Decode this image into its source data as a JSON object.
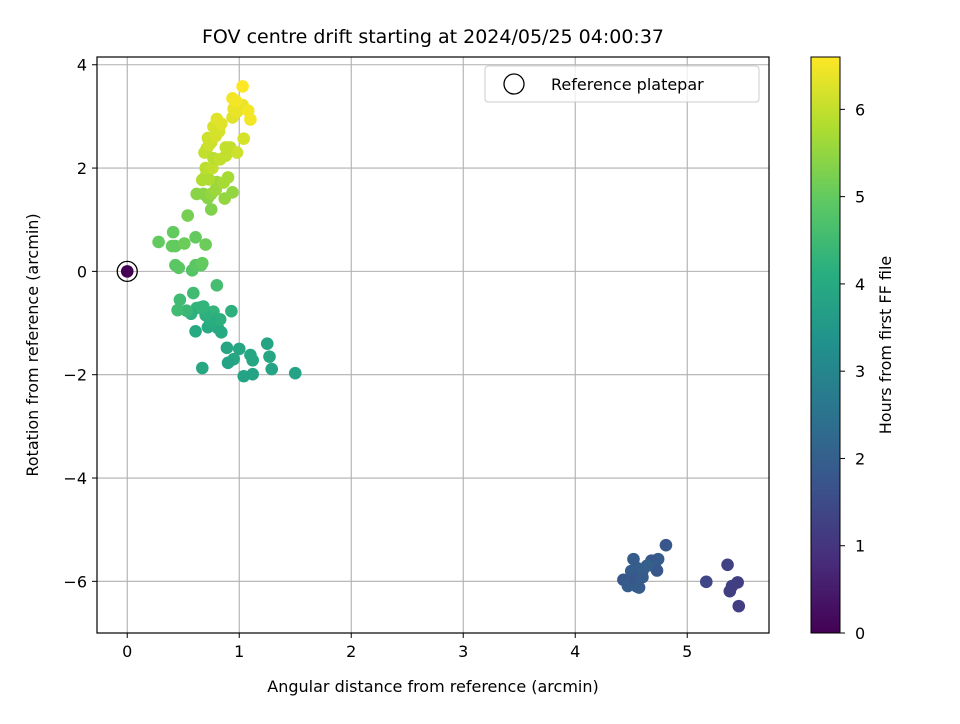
{
  "chart_data": {
    "type": "scatter",
    "title": "FOV centre drift starting at 2024/05/25 04:00:37",
    "xlabel": "Angular distance from reference (arcmin)",
    "ylabel": "Rotation from reference (arcmin)",
    "xlim": [
      -0.27,
      5.73
    ],
    "ylim": [
      -7.0,
      4.15
    ],
    "xticks": [
      0,
      1,
      2,
      3,
      4,
      5
    ],
    "yticks": [
      -6,
      -4,
      -2,
      0,
      2,
      4
    ],
    "xtick_labels": [
      "0",
      "1",
      "2",
      "3",
      "4",
      "5"
    ],
    "ytick_labels": [
      "−6",
      "−4",
      "−2",
      "0",
      "2",
      "4"
    ],
    "grid": true,
    "legend": {
      "position": "top-right",
      "entries": [
        "Reference platepar"
      ]
    },
    "colorbar": {
      "label": "Hours from first FF file",
      "colormap": "viridis",
      "range": [
        0,
        6.6
      ],
      "ticks": [
        0,
        1,
        2,
        3,
        4,
        5,
        6
      ],
      "tick_labels": [
        "0",
        "1",
        "2",
        "3",
        "4",
        "5",
        "6"
      ]
    },
    "reference_point": {
      "x": 0,
      "y": 0,
      "c": 0
    },
    "points": [
      {
        "x": 4.81,
        "y": -5.3,
        "c": 1.8
      },
      {
        "x": 4.74,
        "y": -5.57,
        "c": 1.9
      },
      {
        "x": 4.68,
        "y": -5.6,
        "c": 1.8
      },
      {
        "x": 4.71,
        "y": -5.72,
        "c": 1.9
      },
      {
        "x": 4.73,
        "y": -5.79,
        "c": 1.8
      },
      {
        "x": 4.52,
        "y": -5.57,
        "c": 1.9
      },
      {
        "x": 4.55,
        "y": -5.74,
        "c": 1.9
      },
      {
        "x": 4.6,
        "y": -5.8,
        "c": 2.0
      },
      {
        "x": 4.5,
        "y": -5.8,
        "c": 1.9
      },
      {
        "x": 4.43,
        "y": -5.97,
        "c": 1.8
      },
      {
        "x": 4.47,
        "y": -6.09,
        "c": 1.9
      },
      {
        "x": 4.55,
        "y": -6.1,
        "c": 2.0
      },
      {
        "x": 4.53,
        "y": -5.97,
        "c": 1.8
      },
      {
        "x": 4.6,
        "y": -5.92,
        "c": 1.9
      },
      {
        "x": 4.64,
        "y": -5.7,
        "c": 2.0
      },
      {
        "x": 4.57,
        "y": -6.12,
        "c": 1.9
      },
      {
        "x": 5.17,
        "y": -6.01,
        "c": 1.4
      },
      {
        "x": 5.36,
        "y": -5.68,
        "c": 1.3
      },
      {
        "x": 5.4,
        "y": -6.09,
        "c": 1.3
      },
      {
        "x": 5.38,
        "y": -6.19,
        "c": 1.2
      },
      {
        "x": 5.45,
        "y": -6.02,
        "c": 1.2
      },
      {
        "x": 5.46,
        "y": -6.48,
        "c": 1.2
      },
      {
        "x": 1.5,
        "y": -1.97,
        "c": 3.8
      },
      {
        "x": 1.29,
        "y": -1.89,
        "c": 3.8
      },
      {
        "x": 1.27,
        "y": -1.65,
        "c": 3.9
      },
      {
        "x": 1.25,
        "y": -1.4,
        "c": 3.8
      },
      {
        "x": 1.1,
        "y": -1.62,
        "c": 3.9
      },
      {
        "x": 1.12,
        "y": -1.72,
        "c": 3.9
      },
      {
        "x": 1.12,
        "y": -1.99,
        "c": 3.8
      },
      {
        "x": 1.04,
        "y": -2.03,
        "c": 3.8
      },
      {
        "x": 1.0,
        "y": -1.5,
        "c": 3.9
      },
      {
        "x": 0.89,
        "y": -1.48,
        "c": 3.9
      },
      {
        "x": 0.95,
        "y": -1.7,
        "c": 3.9
      },
      {
        "x": 0.9,
        "y": -1.77,
        "c": 3.8
      },
      {
        "x": 0.67,
        "y": -1.87,
        "c": 3.9
      },
      {
        "x": 0.84,
        "y": -1.18,
        "c": 4.0
      },
      {
        "x": 0.81,
        "y": -1.1,
        "c": 4.0
      },
      {
        "x": 0.72,
        "y": -1.08,
        "c": 4.0
      },
      {
        "x": 0.61,
        "y": -1.16,
        "c": 4.0
      },
      {
        "x": 0.93,
        "y": -0.77,
        "c": 4.2
      },
      {
        "x": 0.83,
        "y": -0.93,
        "c": 4.2
      },
      {
        "x": 0.77,
        "y": -0.78,
        "c": 4.3
      },
      {
        "x": 0.79,
        "y": -0.92,
        "c": 4.2
      },
      {
        "x": 0.74,
        "y": -0.96,
        "c": 4.1
      },
      {
        "x": 0.7,
        "y": -0.85,
        "c": 4.2
      },
      {
        "x": 0.65,
        "y": -0.7,
        "c": 4.3
      },
      {
        "x": 0.68,
        "y": -0.68,
        "c": 4.3
      },
      {
        "x": 0.62,
        "y": -0.71,
        "c": 4.3
      },
      {
        "x": 0.57,
        "y": -0.82,
        "c": 4.2
      },
      {
        "x": 0.53,
        "y": -0.76,
        "c": 4.4
      },
      {
        "x": 0.47,
        "y": -0.55,
        "c": 4.5
      },
      {
        "x": 0.45,
        "y": -0.75,
        "c": 4.5
      },
      {
        "x": 0.59,
        "y": -0.42,
        "c": 4.5
      },
      {
        "x": 0.8,
        "y": -0.27,
        "c": 4.6
      },
      {
        "x": 0.28,
        "y": 0.57,
        "c": 5.0
      },
      {
        "x": 0.41,
        "y": 0.76,
        "c": 5.0
      },
      {
        "x": 0.4,
        "y": 0.49,
        "c": 5.0
      },
      {
        "x": 0.43,
        "y": 0.49,
        "c": 5.0
      },
      {
        "x": 0.51,
        "y": 0.54,
        "c": 5.1
      },
      {
        "x": 0.61,
        "y": 0.66,
        "c": 5.0
      },
      {
        "x": 0.7,
        "y": 0.52,
        "c": 5.1
      },
      {
        "x": 0.43,
        "y": 0.12,
        "c": 4.9
      },
      {
        "x": 0.46,
        "y": 0.07,
        "c": 4.9
      },
      {
        "x": 0.58,
        "y": 0.02,
        "c": 4.8
      },
      {
        "x": 0.61,
        "y": 0.12,
        "c": 4.9
      },
      {
        "x": 0.66,
        "y": 0.12,
        "c": 4.9
      },
      {
        "x": 0.67,
        "y": 0.16,
        "c": 5.0
      },
      {
        "x": 0.54,
        "y": 1.08,
        "c": 5.2
      },
      {
        "x": 0.62,
        "y": 1.5,
        "c": 5.4
      },
      {
        "x": 0.68,
        "y": 1.5,
        "c": 5.4
      },
      {
        "x": 0.72,
        "y": 1.42,
        "c": 5.4
      },
      {
        "x": 0.75,
        "y": 1.2,
        "c": 5.3
      },
      {
        "x": 0.75,
        "y": 1.5,
        "c": 5.5
      },
      {
        "x": 0.79,
        "y": 1.58,
        "c": 5.6
      },
      {
        "x": 0.8,
        "y": 1.73,
        "c": 5.6
      },
      {
        "x": 0.87,
        "y": 1.41,
        "c": 5.5
      },
      {
        "x": 0.94,
        "y": 1.53,
        "c": 5.5
      },
      {
        "x": 0.9,
        "y": 1.82,
        "c": 5.7
      },
      {
        "x": 0.86,
        "y": 1.72,
        "c": 5.7
      },
      {
        "x": 0.7,
        "y": 1.84,
        "c": 5.8
      },
      {
        "x": 0.73,
        "y": 1.78,
        "c": 5.8
      },
      {
        "x": 0.67,
        "y": 1.77,
        "c": 5.8
      },
      {
        "x": 0.7,
        "y": 2.0,
        "c": 5.9
      },
      {
        "x": 0.76,
        "y": 2.0,
        "c": 6.0
      },
      {
        "x": 0.69,
        "y": 2.3,
        "c": 6.0
      },
      {
        "x": 0.71,
        "y": 2.38,
        "c": 6.0
      },
      {
        "x": 0.77,
        "y": 2.19,
        "c": 5.9
      },
      {
        "x": 0.83,
        "y": 2.17,
        "c": 6.0
      },
      {
        "x": 0.88,
        "y": 2.24,
        "c": 6.0
      },
      {
        "x": 0.88,
        "y": 2.4,
        "c": 6.0
      },
      {
        "x": 0.92,
        "y": 2.4,
        "c": 6.0
      },
      {
        "x": 0.98,
        "y": 2.3,
        "c": 6.1
      },
      {
        "x": 0.73,
        "y": 2.45,
        "c": 6.1
      },
      {
        "x": 0.72,
        "y": 2.58,
        "c": 6.1
      },
      {
        "x": 0.75,
        "y": 2.5,
        "c": 6.1
      },
      {
        "x": 0.79,
        "y": 2.62,
        "c": 6.2
      },
      {
        "x": 0.82,
        "y": 2.71,
        "c": 6.2
      },
      {
        "x": 0.77,
        "y": 2.8,
        "c": 6.2
      },
      {
        "x": 0.8,
        "y": 2.95,
        "c": 6.3
      },
      {
        "x": 0.84,
        "y": 2.86,
        "c": 6.3
      },
      {
        "x": 0.94,
        "y": 2.98,
        "c": 6.3
      },
      {
        "x": 1.04,
        "y": 2.57,
        "c": 6.2
      },
      {
        "x": 0.95,
        "y": 3.15,
        "c": 6.4
      },
      {
        "x": 0.98,
        "y": 3.09,
        "c": 6.4
      },
      {
        "x": 1.03,
        "y": 3.22,
        "c": 6.4
      },
      {
        "x": 1.04,
        "y": 3.16,
        "c": 6.4
      },
      {
        "x": 1.08,
        "y": 3.11,
        "c": 6.5
      },
      {
        "x": 1.1,
        "y": 2.94,
        "c": 6.5
      },
      {
        "x": 0.94,
        "y": 3.35,
        "c": 6.5
      },
      {
        "x": 0.97,
        "y": 3.3,
        "c": 6.5
      },
      {
        "x": 1.03,
        "y": 3.58,
        "c": 6.6
      }
    ]
  }
}
